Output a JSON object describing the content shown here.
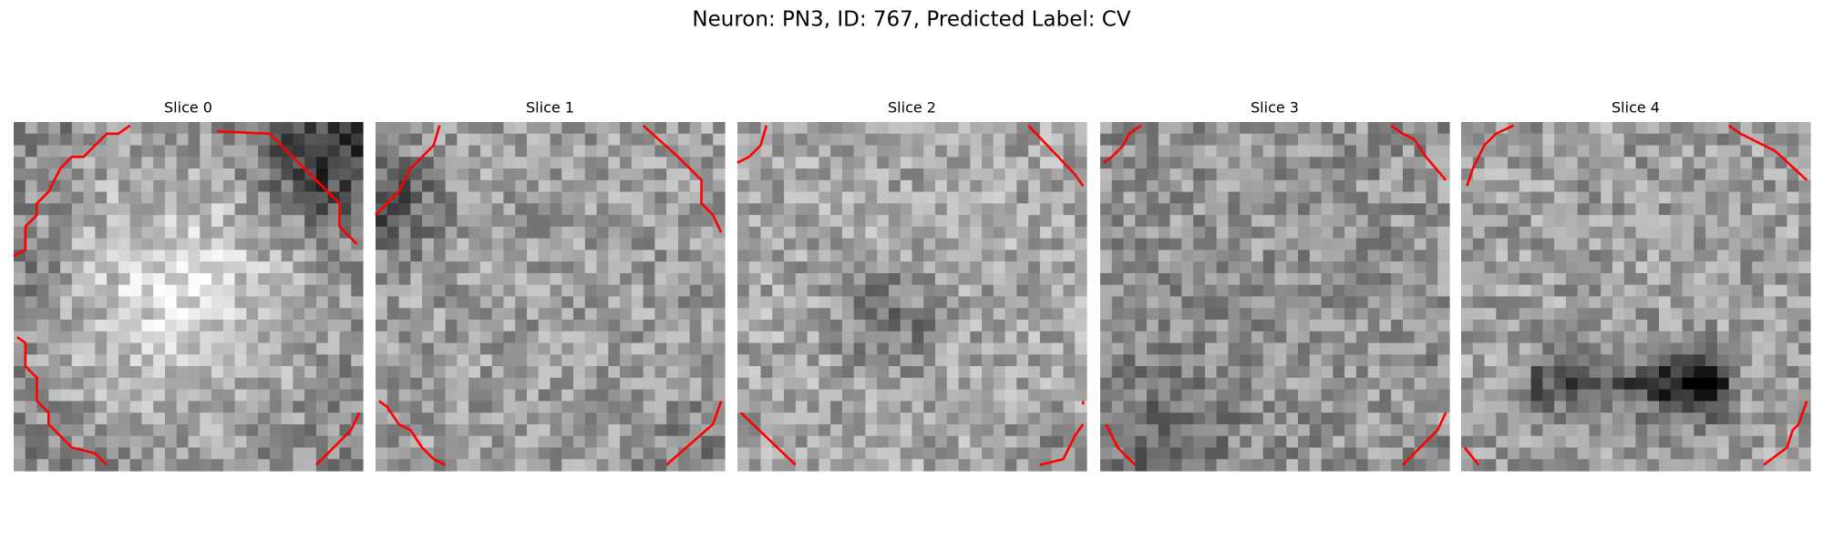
{
  "title": "Neuron: PN3, ID: 767, Predicted Label: CV",
  "panels": [
    {
      "title": "Slice 0"
    },
    {
      "title": "Slice 1"
    },
    {
      "title": "Slice 2"
    },
    {
      "title": "Slice 3"
    },
    {
      "title": "Slice 4"
    }
  ]
}
